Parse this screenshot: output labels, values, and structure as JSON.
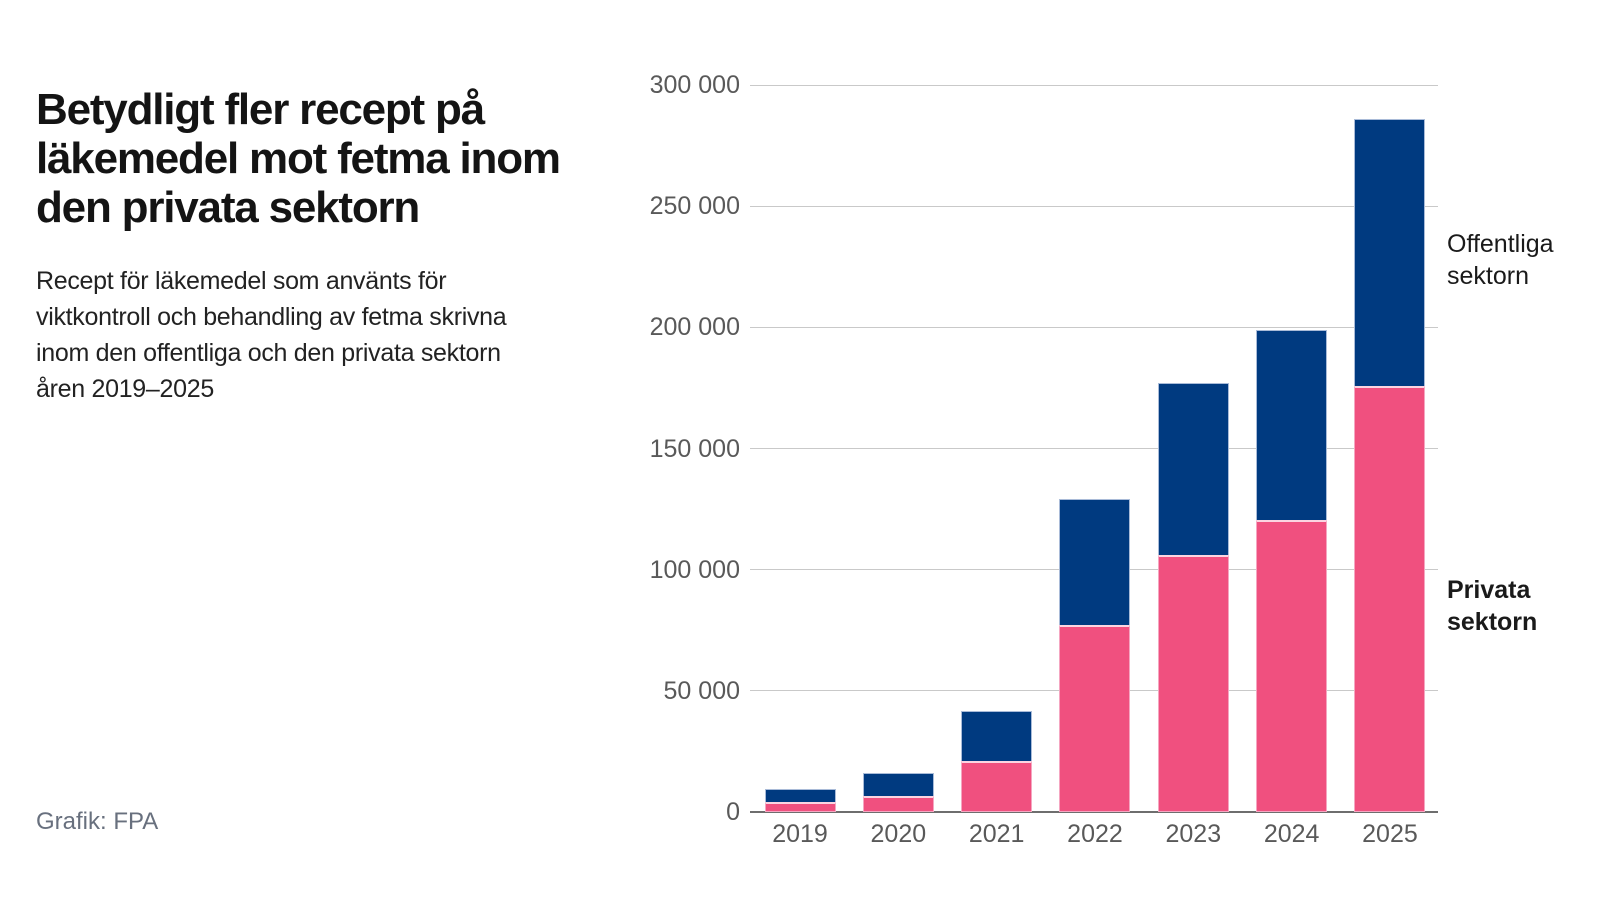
{
  "header": {
    "title": "Betydligt fler recept på\nläkemedel mot fetma inom\nden privata sektorn",
    "subtitle": "Recept för läkemedel som använts för\nviktkontroll och behandling av fetma skrivna\ninom den offentliga och den privata sektorn\nåren 2019–2025"
  },
  "footer": {
    "credit": "Grafik: FPA"
  },
  "annotations": {
    "public": "Offentliga\nsektorn",
    "private": "Privata\nsektorn"
  },
  "colors": {
    "private_pink": "#f0507f",
    "public_blue": "#003a80",
    "gridline": "#c9c9c9",
    "baseline": "#6e6e6e",
    "axis_text": "#595959"
  },
  "chart_data": {
    "type": "bar",
    "stacked": true,
    "title": "Betydligt fler recept på läkemedel mot fetma inom den privata sektorn",
    "xlabel": "",
    "ylabel": "",
    "ylim": [
      0,
      300000
    ],
    "grid": true,
    "legend_position": "right-annotations",
    "categories": [
      "2019",
      "2020",
      "2021",
      "2022",
      "2023",
      "2024",
      "2025"
    ],
    "series": [
      {
        "name": "Privata sektorn",
        "color": "#f0507f",
        "values": [
          4000,
          6500,
          21000,
          77000,
          106000,
          120500,
          176000
        ]
      },
      {
        "name": "Offentliga sektorn",
        "color": "#003a80",
        "values": [
          5500,
          9500,
          20500,
          52000,
          71000,
          78500,
          110000
        ]
      }
    ],
    "totals": [
      9500,
      16000,
      41500,
      129000,
      177000,
      199000,
      286000
    ],
    "yticks": [
      {
        "value": 0,
        "label": "0"
      },
      {
        "value": 50000,
        "label": "50 000"
      },
      {
        "value": 100000,
        "label": "100 000"
      },
      {
        "value": 150000,
        "label": "150 000"
      },
      {
        "value": 200000,
        "label": "200 000"
      },
      {
        "value": 250000,
        "label": "250 000"
      },
      {
        "value": 300000,
        "label": "300 000"
      }
    ]
  }
}
